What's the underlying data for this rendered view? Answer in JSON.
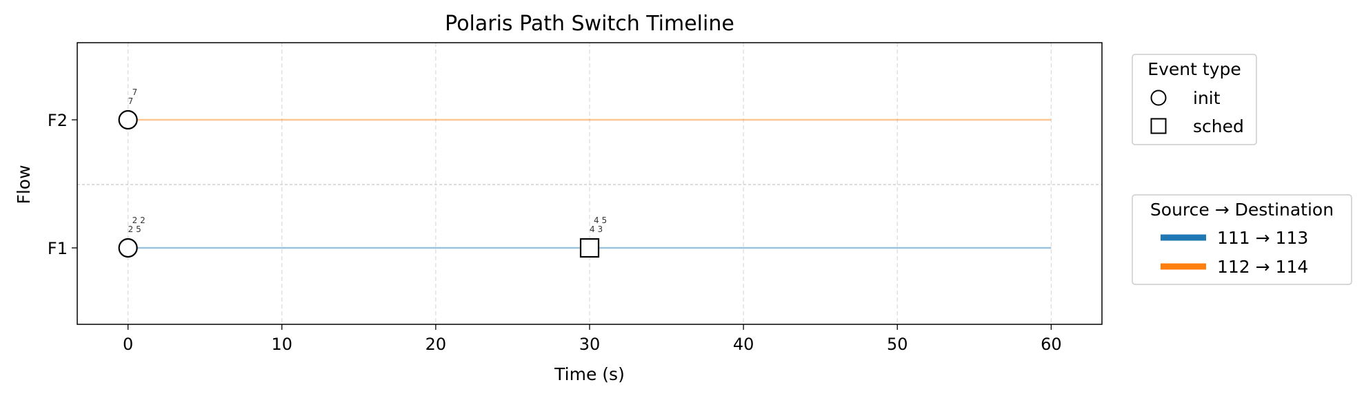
{
  "chart_data": {
    "type": "scatter",
    "title": "Polaris Path Switch Timeline",
    "xlabel": "Time (s)",
    "ylabel": "Flow",
    "xlim": [
      -3.3,
      63.3
    ],
    "x_ticks": [
      0,
      10,
      20,
      30,
      40,
      50,
      60
    ],
    "grid": "x dashed",
    "flows": [
      {
        "name": "F1",
        "color": "#1f77b4",
        "line_x": [
          0,
          60
        ]
      },
      {
        "name": "F2",
        "color": "#ff7f0e",
        "line_x": [
          0,
          60
        ]
      }
    ],
    "events": [
      {
        "flow": "F1",
        "x": 0,
        "type": "init",
        "label_top": "2 2",
        "label_bottom": "2 5"
      },
      {
        "flow": "F1",
        "x": 30,
        "type": "sched",
        "label_top": "4 5",
        "label_bottom": "4 3"
      },
      {
        "flow": "F2",
        "x": 0,
        "type": "init",
        "label_top": "7",
        "label_bottom": "7"
      }
    ],
    "legends": [
      {
        "title": "Event type",
        "placement": "upper-right outside",
        "entries": [
          {
            "marker": "circle",
            "label": "init"
          },
          {
            "marker": "square",
            "label": "sched"
          }
        ]
      },
      {
        "title": "Source → Destination",
        "placement": "right outside",
        "entries": [
          {
            "color": "#1f77b4",
            "label": "111 → 113"
          },
          {
            "color": "#ff7f0e",
            "label": "112 → 114"
          }
        ]
      }
    ]
  }
}
